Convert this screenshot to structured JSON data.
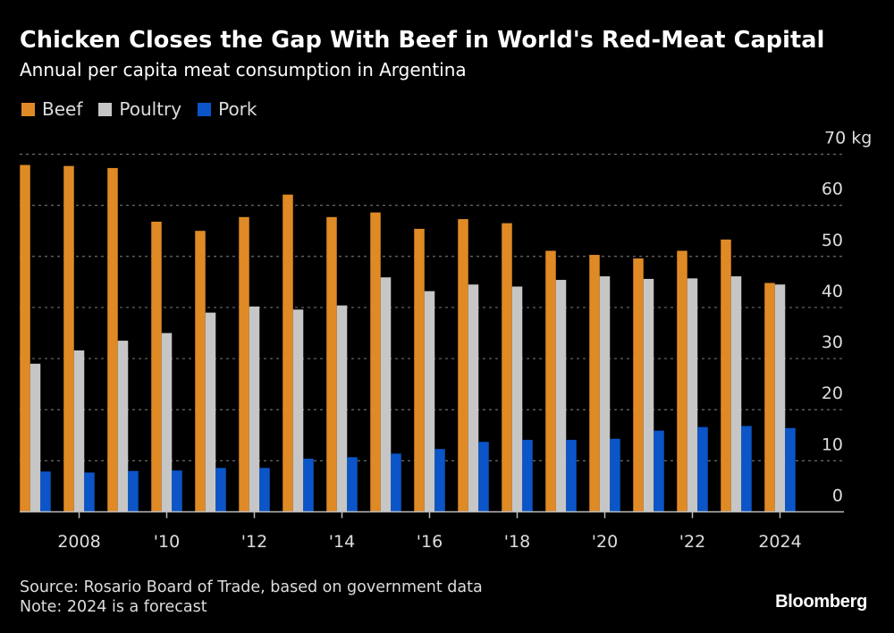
{
  "header": {
    "title": "Chicken Closes the Gap With Beef in World's Red-Meat Capital",
    "subtitle": "Annual per capita meat consumption in Argentina"
  },
  "legend": [
    {
      "label": "Beef",
      "color": "#e08a26"
    },
    {
      "label": "Poultry",
      "color": "#c6c6c6"
    },
    {
      "label": "Pork",
      "color": "#0b55c8"
    }
  ],
  "footer": {
    "source": "Source: Rosario Board of Trade, based on government data",
    "note": "Note: 2024 is a forecast",
    "brand": "Bloomberg"
  },
  "chart_data": {
    "type": "bar",
    "title": "Chicken Closes the Gap With Beef in World's Red-Meat Capital",
    "subtitle": "Annual per capita meat consumption in Argentina",
    "xlabel": "",
    "ylabel": "kg",
    "ylim": [
      0,
      70
    ],
    "yticks": [
      0,
      10,
      20,
      30,
      40,
      50,
      60,
      70
    ],
    "ytick_labels": [
      "0",
      "10",
      "20",
      "30",
      "40",
      "50",
      "60",
      "70 kg"
    ],
    "y_axis_side": "right",
    "grid": true,
    "legend_position": "top-left",
    "categories": [
      "2007",
      "2008",
      "2009",
      "2010",
      "2011",
      "2012",
      "2013",
      "2014",
      "2015",
      "2016",
      "2017",
      "2018",
      "2019",
      "2020",
      "2021",
      "2022",
      "2023",
      "2024"
    ],
    "xtick_categories": [
      "2008",
      "2010",
      "2012",
      "2014",
      "2016",
      "2018",
      "2020",
      "2022",
      "2024"
    ],
    "xtick_labels": [
      "2008",
      "'10",
      "'12",
      "'14",
      "'16",
      "'18",
      "'20",
      "'22",
      "2024"
    ],
    "series": [
      {
        "name": "Beef",
        "color": "#e08a26",
        "values": [
          67.9,
          67.7,
          67.3,
          56.8,
          55.0,
          57.7,
          62.1,
          57.7,
          58.6,
          55.4,
          57.3,
          56.5,
          51.1,
          50.3,
          49.6,
          51.1,
          53.3,
          44.8
        ]
      },
      {
        "name": "Poultry",
        "color": "#c6c6c6",
        "values": [
          29.0,
          31.6,
          33.5,
          35.0,
          39.0,
          40.2,
          39.6,
          40.4,
          45.9,
          43.2,
          44.5,
          44.1,
          45.4,
          46.1,
          45.6,
          45.7,
          46.1,
          44.5
        ]
      },
      {
        "name": "Pork",
        "color": "#0b55c8",
        "values": [
          7.9,
          7.7,
          8.0,
          8.1,
          8.6,
          8.6,
          10.4,
          10.7,
          11.4,
          12.3,
          13.7,
          14.1,
          14.1,
          14.3,
          15.9,
          16.6,
          16.8,
          16.4
        ]
      }
    ],
    "annotations": [
      "Note: 2024 is a forecast"
    ]
  }
}
